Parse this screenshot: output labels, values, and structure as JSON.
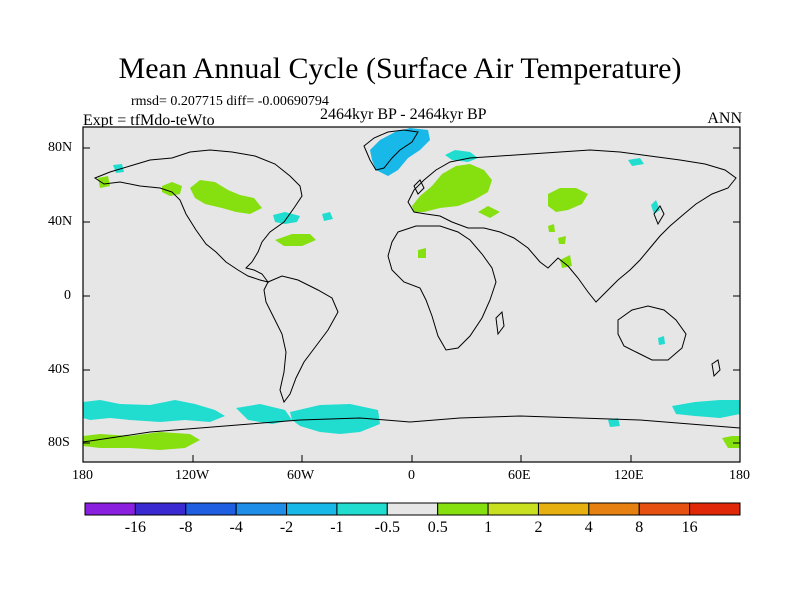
{
  "title": "Mean Annual Cycle (Surface Air Temperature)",
  "stats_line": "rmsd= 0.207715 diff= -0.00690794",
  "experiment_label": "Expt = tfMdo-teWto",
  "period_label": "2464kyr BP - 2464kyr BP",
  "season_label": "ANN",
  "lat_labels": [
    "80N",
    "40N",
    "0",
    "40S",
    "80S"
  ],
  "lon_labels": [
    "180",
    "120W",
    "60W",
    "0",
    "60E",
    "120E",
    "180"
  ],
  "colorbar": {
    "labels": [
      "-16",
      "-8",
      "-4",
      "-2",
      "-1",
      "-0.5",
      "0.5",
      "1",
      "2",
      "4",
      "8",
      "16"
    ],
    "colors": [
      "#8a1fe0",
      "#3a28d0",
      "#1f5ee0",
      "#1f8ee8",
      "#18b8e8",
      "#20ddd0",
      "#e6e6e6",
      "#86e010",
      "#c8e020",
      "#e6b010",
      "#e68010",
      "#e65010",
      "#e02808"
    ]
  },
  "anomaly_colors": {
    "warm": "#86e010",
    "cool": "#20ddd0",
    "cool_strong": "#18b8e8",
    "neutral": "#e6e6e6"
  }
}
